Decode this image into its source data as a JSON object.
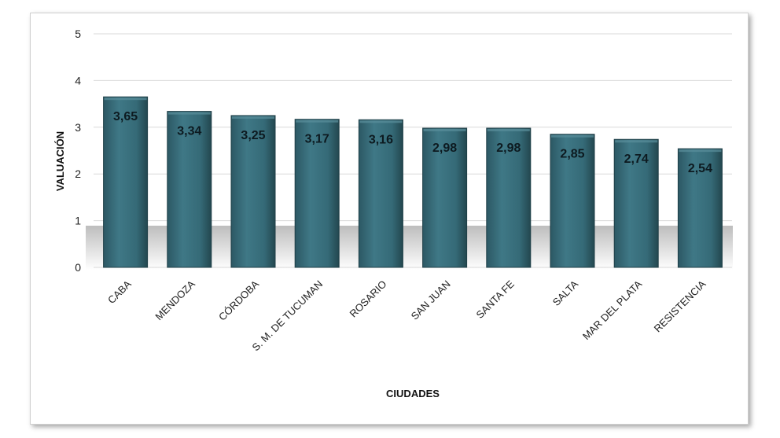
{
  "chart_data": {
    "type": "bar",
    "title": "",
    "xlabel": "CIUDADES",
    "ylabel": "VALUACIÓN",
    "ylim": [
      0,
      5
    ],
    "yticks": [
      0,
      1,
      2,
      3,
      4,
      5
    ],
    "grid": true,
    "legend": "none",
    "categories": [
      "CABA",
      "MENDOZA",
      "CÓRDOBA",
      "S. M. DE TUCUMAN",
      "ROSARIO",
      "SAN JUAN",
      "SANTA FE",
      "SALTA",
      "MAR DEL PLATA",
      "RESISTENCIA"
    ],
    "values": [
      3.65,
      3.34,
      3.25,
      3.17,
      3.16,
      2.98,
      2.98,
      2.85,
      2.74,
      2.54
    ],
    "value_labels": [
      "3,65",
      "3,34",
      "3,25",
      "3,17",
      "3,16",
      "2,98",
      "2,98",
      "2,85",
      "2,74",
      "2,54"
    ],
    "bar_color": "#3a6f7c",
    "bar_edge_color": "#1f3f47"
  }
}
